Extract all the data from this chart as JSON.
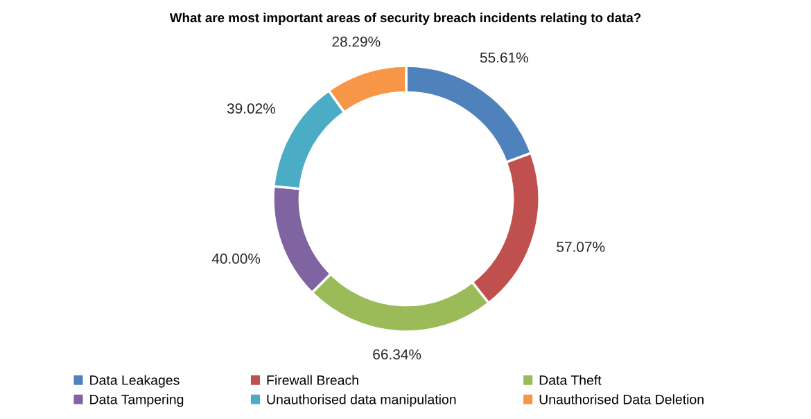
{
  "chart_data": {
    "type": "donut",
    "title": "What are most important areas of security breach incidents relating to data?",
    "categories": [
      "Data Leakages",
      "Firewall Breach",
      "Data Theft",
      "Data Tampering",
      "Unauthorised data manipulation",
      "Unauthorised Data Deletion"
    ],
    "values": [
      55.61,
      57.07,
      66.34,
      40.0,
      39.02,
      28.29
    ],
    "value_labels": [
      "55.61%",
      "57.07%",
      "66.34%",
      "40.00%",
      "39.02%",
      "28.29%"
    ],
    "colors": [
      "#4f81bd",
      "#c0504d",
      "#9bbb59",
      "#8064a2",
      "#4bacc6",
      "#f79646"
    ],
    "legend": "bottom"
  }
}
